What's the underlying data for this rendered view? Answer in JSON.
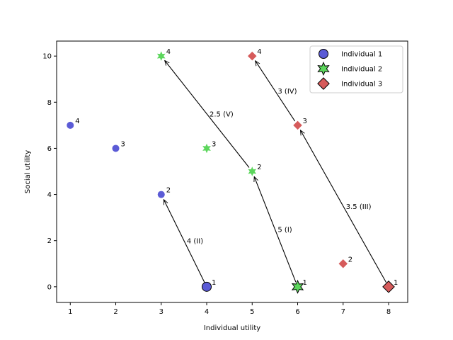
{
  "chart_data": {
    "type": "scatter",
    "xlabel": "Individual utility",
    "ylabel": "Social utility",
    "xlim": [
      0.7,
      8.42
    ],
    "ylim": [
      -0.68,
      10.65
    ],
    "xticks": [
      1,
      2,
      3,
      4,
      5,
      6,
      7,
      8
    ],
    "yticks": [
      0,
      2,
      4,
      6,
      8,
      10
    ],
    "grid": false,
    "legend_position": "top-right",
    "series": [
      {
        "name": "Individual 1",
        "marker": "circle",
        "color": "#5b5bd6",
        "points": [
          {
            "x": 4,
            "y": 0,
            "label": "1",
            "highlight": true
          },
          {
            "x": 3,
            "y": 4,
            "label": "2"
          },
          {
            "x": 2,
            "y": 6,
            "label": "3"
          },
          {
            "x": 1,
            "y": 7,
            "label": "4"
          }
        ]
      },
      {
        "name": "Individual 2",
        "marker": "star",
        "color": "#5cd65c",
        "points": [
          {
            "x": 6,
            "y": 0,
            "label": "1",
            "highlight": true
          },
          {
            "x": 5,
            "y": 5,
            "label": "2"
          },
          {
            "x": 4,
            "y": 6,
            "label": "3"
          },
          {
            "x": 3,
            "y": 10,
            "label": "4"
          }
        ]
      },
      {
        "name": "Individual 3",
        "marker": "diamond",
        "color": "#d65b5b",
        "points": [
          {
            "x": 8,
            "y": 0,
            "label": "1",
            "highlight": true
          },
          {
            "x": 7,
            "y": 1,
            "label": "2"
          },
          {
            "x": 6,
            "y": 7,
            "label": "3"
          },
          {
            "x": 5,
            "y": 10,
            "label": "4"
          }
        ]
      }
    ],
    "arrows": [
      {
        "from": [
          4,
          0
        ],
        "to": [
          3,
          4
        ],
        "label": "4 (II)"
      },
      {
        "from": [
          6,
          0
        ],
        "to": [
          5,
          5
        ],
        "label": "5 (I)"
      },
      {
        "from": [
          5,
          5
        ],
        "to": [
          3,
          10
        ],
        "label": "2.5 (V)"
      },
      {
        "from": [
          8,
          0
        ],
        "to": [
          6,
          7
        ],
        "label": "3.5 (III)"
      },
      {
        "from": [
          6,
          7
        ],
        "to": [
          5,
          10
        ],
        "label": "3 (IV)"
      }
    ]
  }
}
